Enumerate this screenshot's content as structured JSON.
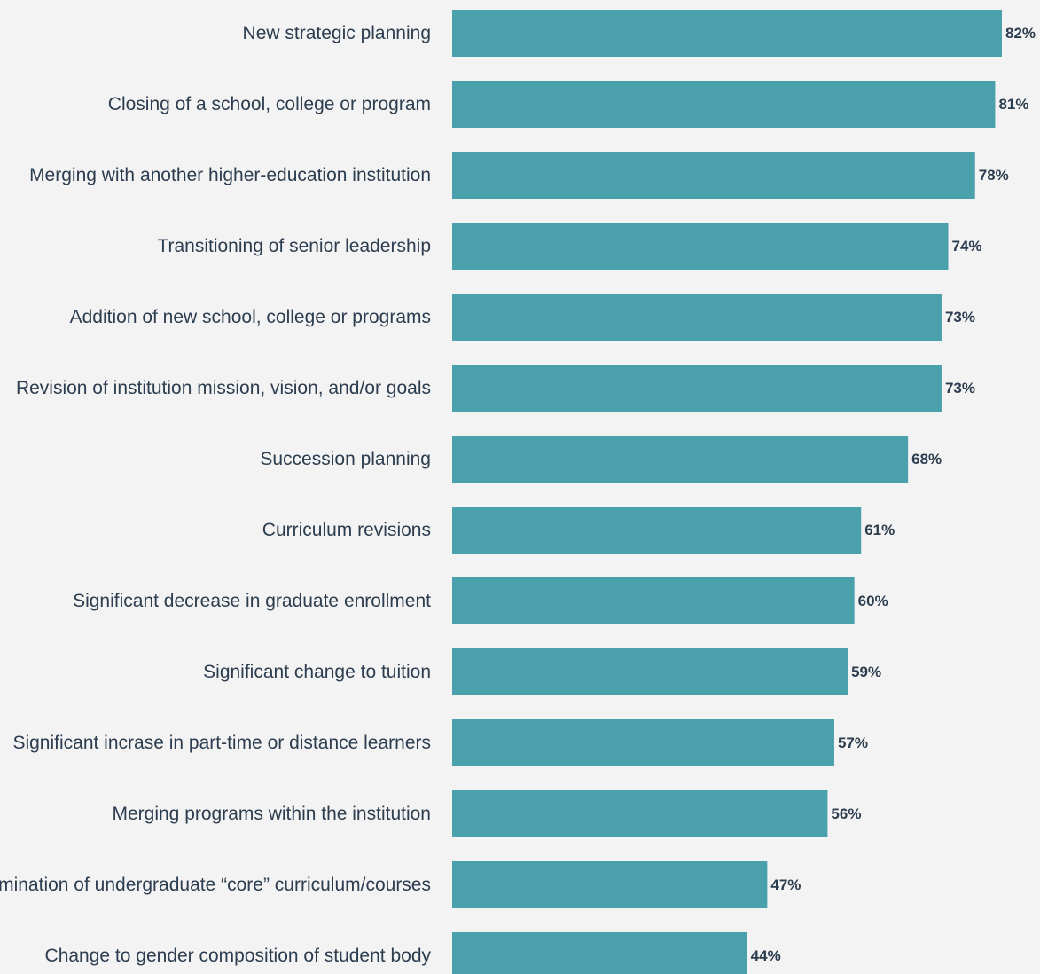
{
  "colors": {
    "background": "#f3f3f3",
    "bar": "#4aa1ac",
    "text": "#2c3d4f"
  },
  "chart_data": {
    "type": "bar",
    "orientation": "horizontal",
    "title": "",
    "xlabel": "",
    "ylabel": "",
    "xlim": [
      0,
      100
    ],
    "grid": false,
    "value_suffix": "%",
    "categories": [
      "New strategic planning",
      "Closing of a school, college or program",
      "Merging with another higher-education institution",
      "Transitioning of senior leadership",
      "Addition of new school, college or programs",
      "Revision of institution mission, vision,  and/or goals",
      "Succession planning",
      "Curriculum revisions",
      "Significant decrease in graduate enrollment",
      "Significant change to tuition",
      "Significant incrase in part-time or distance learners",
      "Merging programs within the institution",
      "Termination of undergraduate “core” curriculum/courses",
      "Change to gender composition of student body"
    ],
    "values": [
      82,
      81,
      78,
      74,
      73,
      73,
      68,
      61,
      60,
      59,
      57,
      56,
      47,
      44
    ],
    "data_labels": [
      "82%",
      "81%",
      "78%",
      "74%",
      "73%",
      "73%",
      "68%",
      "61%",
      "60%",
      "59%",
      "57%",
      "56%",
      "47%",
      "44%"
    ]
  }
}
